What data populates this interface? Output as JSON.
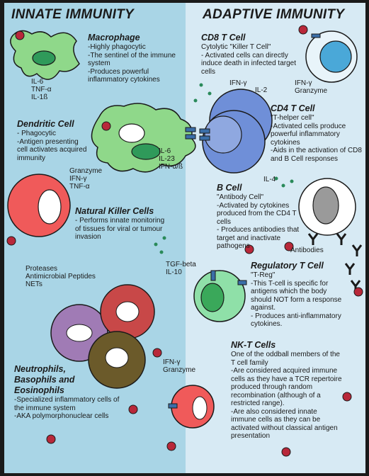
{
  "headers": {
    "innate": "INNATE IMMUNITY",
    "adaptive": "ADAPTIVE IMMUNITY"
  },
  "colors": {
    "innate_bg": "#a9d5e6",
    "adaptive_bg": "#d7eaf4",
    "macrophage": "#8fd88a",
    "nk_cell": "#f05a5a",
    "t_cell": "#6f8fd8",
    "treg": "#8fe0a8",
    "nkt": "#f05a5a",
    "basophil": "#a07bb5",
    "eosinophil": "#c84848",
    "neutrophil": "#6b5a2a"
  },
  "innate": {
    "macrophage": {
      "title": "Macrophage",
      "body": "-Highly phagocytic\n-The sentinel of the immune\nsystem\n-Produces powerful\ninflammatory cytokines",
      "cytokines": "IL-6\nTNF-α\nIL-1ß"
    },
    "dendritic": {
      "title": "Dendritic Cell",
      "body": "- Phagocytic\n-Antigen presenting\ncell activates acquired\nimmunity",
      "cytokines": "IL-6\nIL-23\nIFN-α/ß"
    },
    "nk": {
      "title": "Natural Killer Cells",
      "body": "- Performs innate monitoring\nof tissues for viral or tumour\ninvasion",
      "cytokines": "Granzyme\nIFN-γ\nTNF-α"
    },
    "granulocytes": {
      "title": "Neutrophils,\nBasophils and\nEosinophils",
      "body": "-Specialized inflammatory cells of\nthe immune system\n-AKA polymorphonuclear cells",
      "products": "Proteases\nAntimicrobial Peptides\nNETs"
    }
  },
  "adaptive": {
    "cd8": {
      "title": "CD8 T Cell",
      "subtitle": "Cytolytic \"Killer T Cell\"",
      "body": "- Activated cells can directly\ninduce death in infected target\ncells",
      "cytokines_a": "IFN-γ",
      "cytokines_b": "IL-2",
      "cytokines_c": "IFN-γ\nGranzyme"
    },
    "cd4": {
      "title": "CD4 T Cell",
      "subtitle": "\"T-helper cell\"",
      "body": "-Activated cells produce\npowerful inflammatory\ncytokines\n-Aids in the activation of CD8\nand B Cell responses"
    },
    "bcell": {
      "title": "B Cell",
      "subtitle": "\"Antibody Cell\"",
      "body": "-Activated by cytokines\nproduced from the CD4 T\ncells\n- Produces antibodies that\ntarget and inactivate\npathogens",
      "cytokine": "IL-4",
      "antibodies": "Antibodies"
    },
    "treg": {
      "title": "Regulatory T Cell",
      "subtitle": "\"T-Reg\"",
      "body": "-This T-cell is specific for\nantigens which the body\nshould NOT form a response\nagainst.\n- Produces anti-inflammatory\ncytokines.",
      "cytokines": "TGF-beta\nIL-10"
    },
    "nkt": {
      "title": "NK-T Cells",
      "body": "One of the oddball members of the\nT cell family\n-Are considered acquired immune\ncells as they have a TCR repertoire\nproduced through random\nrecombination (although of a\nrestricted range).\n-Are also considered innate\nimmune cells as they can be\nactivated without classical antigen\npresentation",
      "cytokines": "IFN-γ\nGranzyme"
    }
  }
}
